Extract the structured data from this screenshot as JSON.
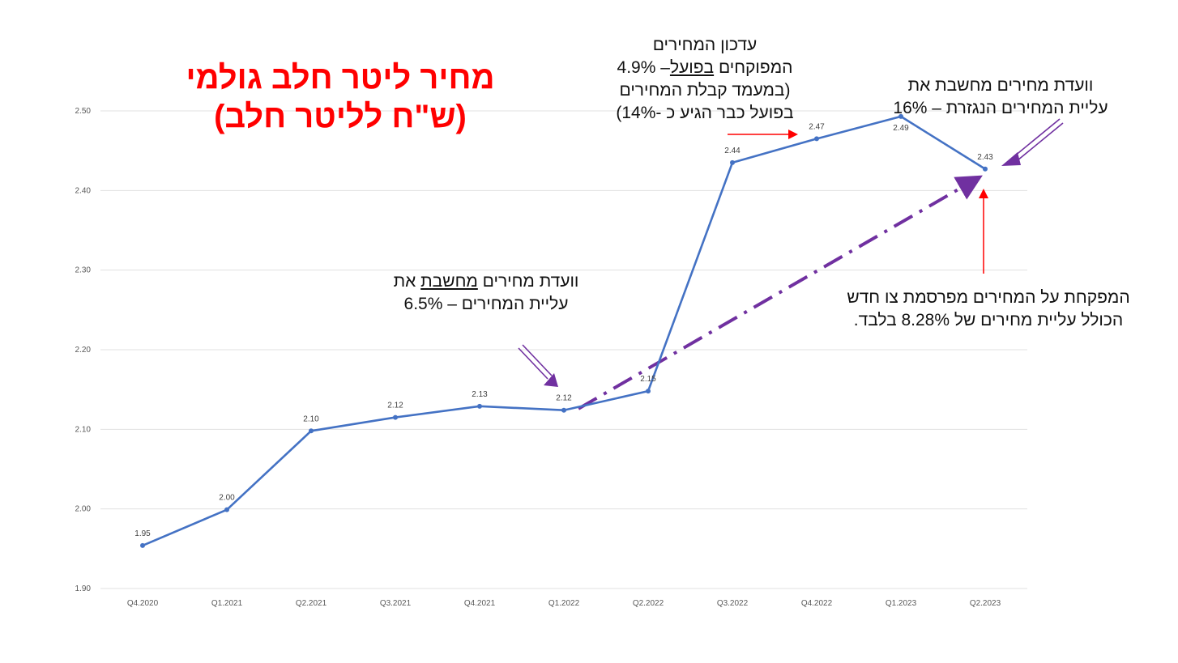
{
  "chart_data": {
    "type": "line",
    "title_line1": "מחיר ליטר חלב גולמי",
    "title_line2": "(ש\"ח לליטר חלב)",
    "categories": [
      "Q4.2020",
      "Q1.2021",
      "Q2.2021",
      "Q3.2021",
      "Q4.2021",
      "Q1.2022",
      "Q2.2022",
      "Q3.2022",
      "Q4.2022",
      "Q1.2023",
      "Q2.2023"
    ],
    "values": [
      1.954,
      1.999,
      2.098,
      2.115,
      2.129,
      2.124,
      2.148,
      2.435,
      2.465,
      2.493,
      2.427
    ],
    "data_labels": [
      "1.95",
      "2.00",
      "2.10",
      "2.12",
      "2.13",
      "2.12",
      "2.15",
      "2.44",
      "2.47",
      "2.49",
      "2.43"
    ],
    "ylim": [
      1.9,
      2.5
    ],
    "yticks": [
      "1.90",
      "2.00",
      "2.10",
      "2.20",
      "2.30",
      "2.40",
      "2.50"
    ],
    "grid": true,
    "line_color": "#4472c4",
    "trend_color": "#7030a0",
    "arrow_red": "#ff0000",
    "trend_line": {
      "from_index": 5,
      "from_value": 2.13,
      "to_index": 10,
      "to_value": 2.415
    }
  },
  "annotations": {
    "note1": {
      "line1": "וועדת מחירים ",
      "line1_u": "מחשבת",
      "line1_end": " את",
      "line2": "עליית המחירים – 6.5%"
    },
    "note2": {
      "line1": "עדכון המחירים",
      "line2_a": "המפוקחים ",
      "line2_u": "בפועל",
      "line2_b": "– 4.9%",
      "line3": "(במעמד קבלת המחירים",
      "line4": "בפועל כבר הגיע כ -14%)"
    },
    "note3": {
      "line1": "וועדת מחירים מחשבת את",
      "line2": "עליית המחירים הנגזרת – 16%"
    },
    "note4": {
      "line1": "המפקחת על המחירים מפרסמת צו חדש",
      "line2": "הכולל עליית מחירים של 8.28% בלבד."
    }
  }
}
